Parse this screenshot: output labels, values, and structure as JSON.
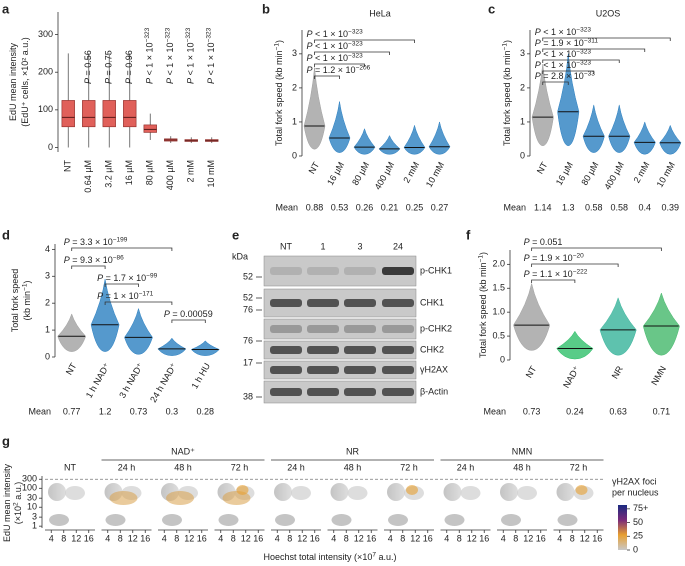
{
  "chart_data": [
    {
      "panel": "a",
      "type": "box",
      "ylabel": [
        [
          {
            "text": "EdU mean intensity"
          }
        ],
        [
          {
            "text": "(EdU⁺ cells, ×10² a.u.)"
          }
        ]
      ],
      "categories": [
        "NT",
        "0.64 µM",
        "3.2 µM",
        "16 µM",
        "80 µM",
        "400 µM",
        "2 mM",
        "10 mM"
      ],
      "median": [
        80,
        80,
        80,
        80,
        48,
        20,
        18,
        18
      ],
      "q1": [
        55,
        55,
        55,
        55,
        40,
        17,
        16,
        16
      ],
      "q3": [
        125,
        125,
        125,
        125,
        60,
        23,
        21,
        21
      ],
      "whisker_low": [
        0,
        0,
        0,
        0,
        20,
        12,
        12,
        12
      ],
      "whisker_high": [
        250,
        250,
        250,
        250,
        90,
        30,
        27,
        27
      ],
      "color": "#e0605a",
      "ylim": [
        -12,
        360
      ],
      "yticks": [
        0,
        100,
        200,
        300
      ],
      "pvalues": [
        null,
        [
          {
            "i": "P"
          },
          {
            "text": " = 0.56"
          }
        ],
        [
          {
            "i": "P"
          },
          {
            "text": " = 0.75"
          }
        ],
        [
          {
            "i": "P"
          },
          {
            "text": " = 0.96"
          }
        ],
        [
          {
            "i": "P"
          },
          {
            "text": " < 1 × 10"
          },
          {
            "sup": "−323"
          }
        ],
        [
          {
            "i": "P"
          },
          {
            "text": " < 1 × 10"
          },
          {
            "sup": "−323"
          }
        ],
        [
          {
            "i": "P"
          },
          {
            "text": " < 1 × 10"
          },
          {
            "sup": "−323"
          }
        ],
        [
          {
            "i": "P"
          },
          {
            "text": " < 1 × 10"
          },
          {
            "sup": "−323"
          }
        ]
      ]
    },
    {
      "panel": "b",
      "type": "swarm",
      "title": "HeLa",
      "ylabel": [
        [
          {
            "text": "Total fork speed (kb min"
          },
          {
            "sup": "−1"
          },
          {
            "text": ")"
          }
        ]
      ],
      "categories": [
        "NT",
        "16 µM",
        "80 µM",
        "400 µM",
        "2 mM",
        "10 mM"
      ],
      "means": [
        0.88,
        0.53,
        0.26,
        0.21,
        0.25,
        0.27
      ],
      "ranges": [
        [
          0.2,
          2.6
        ],
        [
          0.1,
          1.6
        ],
        [
          0.05,
          0.8
        ],
        [
          0.05,
          0.6
        ],
        [
          0.05,
          0.9
        ],
        [
          0.05,
          1.0
        ]
      ],
      "colors": [
        "#a0a0a0",
        "#2a7fc1",
        "#2a7fc1",
        "#2a7fc1",
        "#2a7fc1",
        "#2a7fc1"
      ],
      "ylim": [
        0,
        3.7
      ],
      "yticks": [
        0,
        1,
        2,
        3
      ],
      "mean_label": "Mean",
      "brackets": [
        {
          "from": 0,
          "to": 4,
          "label": [
            {
              "i": "P"
            },
            {
              "text": " < 1 × 10"
            },
            {
              "sup": "−323"
            }
          ]
        },
        {
          "from": 0,
          "to": 3,
          "label": [
            {
              "i": "P"
            },
            {
              "text": " < 1 × 10"
            },
            {
              "sup": "−323"
            }
          ]
        },
        {
          "from": 0,
          "to": 2,
          "label": [
            {
              "i": "P"
            },
            {
              "text": " < 1 × 10"
            },
            {
              "sup": "−323"
            }
          ]
        },
        {
          "from": 0,
          "to": 1,
          "label": [
            {
              "i": "P"
            },
            {
              "text": " = 1.2 × 10"
            },
            {
              "sup": "−206"
            }
          ]
        }
      ]
    },
    {
      "panel": "c",
      "type": "swarm",
      "title": "U2OS",
      "ylabel": [
        [
          {
            "text": "Total fork speed (kb min"
          },
          {
            "sup": "−1"
          },
          {
            "text": ")"
          }
        ]
      ],
      "categories": [
        "NT",
        "16 µM",
        "80 µM",
        "400 µM",
        "2 mM",
        "10 mM"
      ],
      "means": [
        1.14,
        1.3,
        0.58,
        0.58,
        0.4,
        0.39
      ],
      "ranges": [
        [
          0.3,
          2.7
        ],
        [
          0.3,
          3.0
        ],
        [
          0.1,
          1.5
        ],
        [
          0.1,
          1.5
        ],
        [
          0.05,
          1.0
        ],
        [
          0.05,
          0.9
        ]
      ],
      "colors": [
        "#a0a0a0",
        "#2a7fc1",
        "#2a7fc1",
        "#2a7fc1",
        "#2a7fc1",
        "#2a7fc1"
      ],
      "ylim": [
        0,
        3.7
      ],
      "yticks": [
        0,
        1,
        2,
        3
      ],
      "mean_label": "Mean",
      "brackets": [
        {
          "from": 0,
          "to": 5,
          "label": [
            {
              "i": "P"
            },
            {
              "text": " < 1 × 10"
            },
            {
              "sup": "−323"
            }
          ]
        },
        {
          "from": 0,
          "to": 4,
          "label": [
            {
              "i": "P"
            },
            {
              "text": " = 1.9 × 10"
            },
            {
              "sup": "−311"
            }
          ]
        },
        {
          "from": 0,
          "to": 3,
          "label": [
            {
              "i": "P"
            },
            {
              "text": " < 1 × 10"
            },
            {
              "sup": "−323"
            }
          ]
        },
        {
          "from": 0,
          "to": 2,
          "label": [
            {
              "i": "P"
            },
            {
              "text": " < 1 × 10"
            },
            {
              "sup": "−323"
            }
          ]
        },
        {
          "from": 0,
          "to": 1,
          "label": [
            {
              "i": "P"
            },
            {
              "text": " = 2.8 × 10"
            },
            {
              "sup": "−33"
            }
          ]
        }
      ]
    },
    {
      "panel": "d",
      "type": "swarm",
      "ylabel": [
        [
          {
            "text": "Total fork speed"
          }
        ],
        [
          {
            "text": "(kb min"
          },
          {
            "sup": "−1"
          },
          {
            "text": ")"
          }
        ]
      ],
      "categories": [
        "NT",
        "1 h NAD⁺",
        "3 h NAD⁺",
        "24 h NAD⁺",
        "1 h HU"
      ],
      "means": [
        0.77,
        1.2,
        0.73,
        0.3,
        0.28
      ],
      "ranges": [
        [
          0.2,
          1.6
        ],
        [
          0.2,
          2.9
        ],
        [
          0.1,
          1.8
        ],
        [
          0.05,
          0.7
        ],
        [
          0.05,
          0.6
        ]
      ],
      "colors": [
        "#a0a0a0",
        "#2a7fc1",
        "#2a7fc1",
        "#2a7fc1",
        "#2a7fc1"
      ],
      "ylim": [
        0,
        4.2
      ],
      "yticks": [
        0,
        1,
        2,
        3,
        4
      ],
      "mean_label": "Mean",
      "brackets": [
        {
          "from": 0,
          "to": 3,
          "label": [
            {
              "i": "P"
            },
            {
              "text": " = 3.3 × 10"
            },
            {
              "sup": "−199"
            }
          ]
        },
        {
          "from": 0,
          "to": 1,
          "label": [
            {
              "i": "P"
            },
            {
              "text": " = 9.3 × 10"
            },
            {
              "sup": "−86"
            }
          ]
        },
        {
          "from": 1,
          "to": 2,
          "label": [
            {
              "i": "P"
            },
            {
              "text": " = 1.7 × 10"
            },
            {
              "sup": "−99"
            }
          ]
        },
        {
          "from": 1,
          "to": 3,
          "label": [
            {
              "i": "P"
            },
            {
              "text": " = 1 × 10"
            },
            {
              "sup": "−171"
            }
          ]
        },
        {
          "from": 3,
          "to": 4,
          "label": [
            {
              "i": "P"
            },
            {
              "text": " = 0.00059"
            }
          ]
        }
      ]
    },
    {
      "panel": "f",
      "type": "swarm",
      "ylabel": [
        [
          {
            "text": "Total fork speed (kb min"
          },
          {
            "sup": "−1"
          },
          {
            "text": ")"
          }
        ]
      ],
      "categories": [
        "NT",
        "NAD⁺",
        "NR",
        "NMN"
      ],
      "means": [
        0.73,
        0.24,
        0.63,
        0.71
      ],
      "ranges": [
        [
          0.2,
          1.6
        ],
        [
          0.02,
          0.6
        ],
        [
          0.1,
          1.3
        ],
        [
          0.1,
          1.4
        ]
      ],
      "colors": [
        "#a0a0a0",
        "#2fbf6a",
        "#36b39a",
        "#44b86a"
      ],
      "ylim": [
        0,
        2.3
      ],
      "yticks": [
        0,
        0.5,
        {
          "value": 1,
          "label": "1.0"
        },
        1.5,
        {
          "value": 2,
          "label": "2.0"
        }
      ],
      "mean_label": "Mean",
      "brackets": [
        {
          "from": 0,
          "to": 3,
          "label": [
            {
              "i": "P"
            },
            {
              "text": " = 0.051"
            }
          ]
        },
        {
          "from": 0,
          "to": 2,
          "label": [
            {
              "i": "P"
            },
            {
              "text": " = 1.9 × 10"
            },
            {
              "sup": "−20"
            }
          ]
        },
        {
          "from": 0,
          "to": 1,
          "label": [
            {
              "i": "P"
            },
            {
              "text": " = 1.1 × 10"
            },
            {
              "sup": "−222"
            }
          ]
        }
      ]
    },
    {
      "panel": "g",
      "type": "facet-scatter",
      "ylabel": [
        [
          {
            "text": "EdU mean intensity"
          }
        ],
        [
          {
            "text": "(×10"
          },
          {
            "sup": "2"
          },
          {
            "text": " a.u.)"
          }
        ]
      ],
      "xlabel": [
        {
          "text": "Hoechst total intensity (×10"
        },
        {
          "sup": "7"
        },
        {
          "text": " a.u.)"
        }
      ],
      "facets": [
        "NT",
        "24 h",
        "48 h",
        "72 h",
        "24 h",
        "48 h",
        "72 h",
        "24 h",
        "48 h",
        "72 h"
      ],
      "groups": [
        {
          "label": "NAD⁺",
          "first": 1,
          "last": 3
        },
        {
          "label": "NR",
          "first": 4,
          "last": 6
        },
        {
          "label": "NMN",
          "first": 7,
          "last": 9
        }
      ],
      "xlim": [
        2,
        18
      ],
      "xticks": [
        4,
        8,
        12,
        16
      ],
      "ylim": [
        0.8,
        350
      ],
      "yticks": [
        1,
        3,
        10,
        30,
        100,
        300
      ],
      "log_y": true,
      "threshold": 300,
      "colorbar": {
        "title": [
          "γH2AX foci",
          "per nucleus"
        ],
        "lim": [
          0,
          82
        ],
        "ticks": [
          0,
          25,
          50,
          {
            "value": 75,
            "label": "75+"
          }
        ],
        "colors": [
          "#c8c8c8",
          "#e8a030",
          "#7a2a7a",
          "#1a2a80"
        ]
      }
    }
  ],
  "blot": {
    "panel": "e",
    "kda": "kDa",
    "lanes": [
      "NT",
      "1",
      "3",
      "24"
    ],
    "markers": [
      52,
      52,
      76,
      76,
      17,
      38
    ],
    "bands": [
      "p-CHK1",
      "CHK1",
      "p-CHK2",
      "CHK2",
      "γH2AX",
      "β-Actin"
    ]
  }
}
